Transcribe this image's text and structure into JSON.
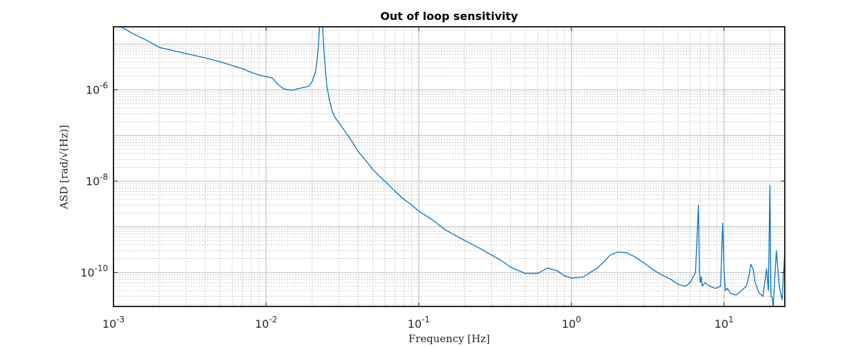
{
  "chart_data": {
    "type": "line",
    "title": "Out of loop sensitivity",
    "xlabel": "Frequency [Hz]",
    "ylabel": "ASD [rad/√(Hz)]",
    "xscale": "log",
    "yscale": "log",
    "xlim": [
      0.001,
      25
    ],
    "ylim": [
      1.8e-11,
      2.4e-05
    ],
    "grid": "major and minor",
    "x_ticks": [
      {
        "value": 0.001,
        "base": "10",
        "exp": "-3"
      },
      {
        "value": 0.01,
        "base": "10",
        "exp": "-2"
      },
      {
        "value": 0.1,
        "base": "10",
        "exp": "-1"
      },
      {
        "value": 1,
        "base": "10",
        "exp": "0"
      },
      {
        "value": 10,
        "base": "10",
        "exp": "1"
      }
    ],
    "y_ticks": [
      {
        "value": 1e-10,
        "base": "10",
        "exp": "-10"
      },
      {
        "value": 1e-08,
        "base": "10",
        "exp": "-8"
      },
      {
        "value": 1e-06,
        "base": "10",
        "exp": "-6"
      }
    ],
    "series": [
      {
        "color": "#0072bd",
        "x": [
          0.001,
          0.0013,
          0.0017,
          0.002,
          0.003,
          0.004,
          0.005,
          0.006,
          0.007,
          0.008,
          0.009,
          0.01,
          0.011,
          0.012,
          0.013,
          0.014,
          0.015,
          0.016,
          0.017,
          0.018,
          0.019,
          0.02,
          0.021,
          0.0215,
          0.022,
          0.0225,
          0.023,
          0.0235,
          0.024,
          0.025,
          0.026,
          0.027,
          0.028,
          0.03,
          0.033,
          0.036,
          0.04,
          0.045,
          0.05,
          0.055,
          0.06,
          0.07,
          0.08,
          0.09,
          0.1,
          0.12,
          0.15,
          0.2,
          0.25,
          0.3,
          0.35,
          0.4,
          0.5,
          0.6,
          0.7,
          0.8,
          0.9,
          1.0,
          1.2,
          1.5,
          1.8,
          2.0,
          2.3,
          2.6,
          3.0,
          3.5,
          4.0,
          4.5,
          5.0,
          5.6,
          6.0,
          6.5,
          6.8,
          6.9,
          7.0,
          7.1,
          7.2,
          7.5,
          8.0,
          8.8,
          9.5,
          9.8,
          10.0,
          10.2,
          10.5,
          11.0,
          12.0,
          13.0,
          14.0,
          14.5,
          15.0,
          15.5,
          16.0,
          17.0,
          18.0,
          19.0,
          19.5,
          20.0,
          20.3,
          20.6,
          21.0,
          22.0,
          23.0,
          24.0,
          25.0
        ],
        "y": [
          3e-05,
          1.8e-05,
          1.15e-05,
          8.5e-06,
          6.2e-06,
          5e-06,
          4.1e-06,
          3.4e-06,
          2.9e-06,
          2.4e-06,
          2.1e-06,
          1.95e-06,
          1.8e-06,
          1.3e-06,
          1.05e-06,
          1e-06,
          9.8e-07,
          1.05e-06,
          1.1e-06,
          1.15e-06,
          1.2e-06,
          1.5e-06,
          2.4e-06,
          4e-06,
          9e-06,
          3.5e-05,
          0.00028,
          2e-05,
          6e-06,
          1.2e-06,
          6e-07,
          3.5e-07,
          2.6e-07,
          1.9e-07,
          1.2e-07,
          8e-08,
          4.5e-08,
          2.8e-08,
          1.8e-08,
          1.3e-08,
          1e-08,
          6e-09,
          4e-09,
          3e-09,
          2.2e-09,
          1.5e-09,
          8.5e-10,
          5e-10,
          3.4e-10,
          2.4e-10,
          1.8e-10,
          1.3e-10,
          9.5e-11,
          9.5e-11,
          1.25e-10,
          1.1e-10,
          8.5e-11,
          7.5e-11,
          8e-11,
          1.3e-10,
          2.4e-10,
          2.8e-10,
          2.7e-10,
          2.2e-10,
          1.6e-10,
          1.1e-10,
          8.5e-11,
          7e-11,
          5.5e-11,
          5e-11,
          6e-11,
          1e-10,
          3e-09,
          1e-10,
          6e-11,
          8e-11,
          5e-11,
          6e-11,
          5e-11,
          4.5e-11,
          5e-11,
          1.2e-09,
          1.2e-10,
          4e-11,
          4.5e-11,
          3.5e-11,
          3.2e-11,
          4e-11,
          5e-11,
          8e-11,
          1.5e-10,
          1.2e-10,
          6e-11,
          3.5e-11,
          3e-11,
          1.2e-10,
          4e-11,
          8e-09,
          3e-11,
          3e-11,
          1.8e-11,
          3e-10,
          5e-11,
          2.5e-11,
          3e-10
        ]
      }
    ]
  }
}
